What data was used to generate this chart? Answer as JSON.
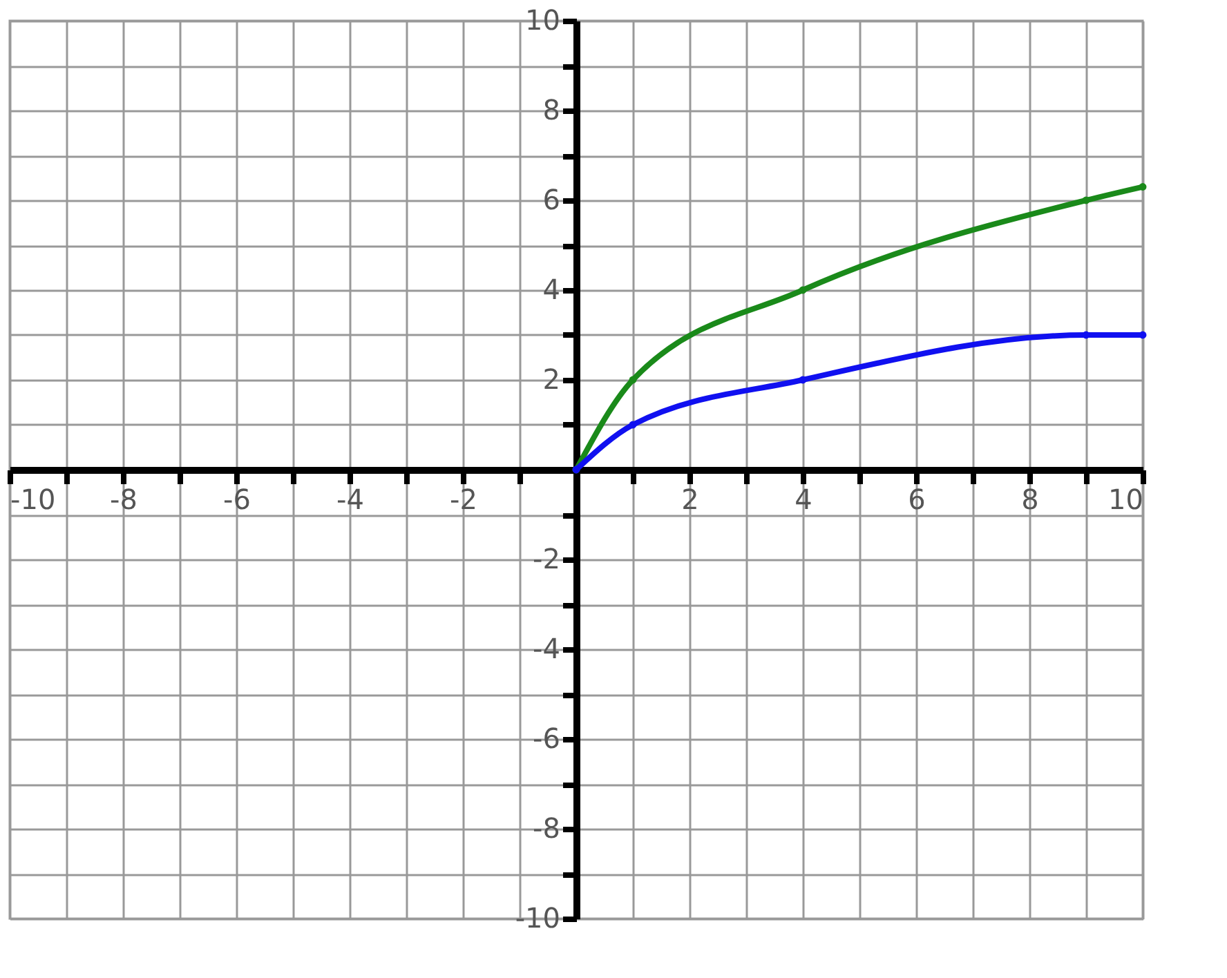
{
  "chart_data": {
    "type": "line",
    "series": [
      {
        "color": "#1a8a1a",
        "x": [
          0,
          1,
          4,
          9,
          10
        ],
        "values": [
          0,
          2,
          4,
          6,
          6.3
        ]
      },
      {
        "color": "#1010f0",
        "x": [
          0,
          1,
          4,
          9,
          10
        ],
        "values": [
          0,
          1,
          2,
          3,
          3
        ]
      }
    ],
    "xlim": [
      -10,
      10
    ],
    "ylim": [
      -10,
      10
    ],
    "xticks": [
      -10,
      {
        "value": -9,
        "label": null
      },
      -8,
      {
        "value": -7,
        "label": null
      },
      -6,
      {
        "value": -5,
        "label": null
      },
      -4,
      {
        "value": -3,
        "label": null
      },
      -2,
      {
        "value": -1,
        "label": null
      },
      {
        "value": 0,
        "label": null
      },
      {
        "value": 1,
        "label": null
      },
      2,
      {
        "value": 3,
        "label": null
      },
      4,
      {
        "value": 5,
        "label": null
      },
      6,
      {
        "value": 7,
        "label": null
      },
      8,
      {
        "value": 9,
        "label": null
      },
      10
    ],
    "yticks": [
      -10,
      {
        "value": -9,
        "label": null
      },
      -8,
      {
        "value": -7,
        "label": null
      },
      -6,
      {
        "value": -5,
        "label": null
      },
      -4,
      {
        "value": -3,
        "label": null
      },
      -2,
      {
        "value": -1,
        "label": null
      },
      {
        "value": 0,
        "label": null
      },
      {
        "value": 1,
        "label": null
      },
      2,
      {
        "value": 3,
        "label": null
      },
      4,
      {
        "value": 5,
        "label": null
      },
      6,
      {
        "value": 7,
        "label": null
      },
      8,
      {
        "value": 9,
        "label": null
      },
      10
    ],
    "grid": true,
    "marker": "circle",
    "line_style": "solid"
  }
}
